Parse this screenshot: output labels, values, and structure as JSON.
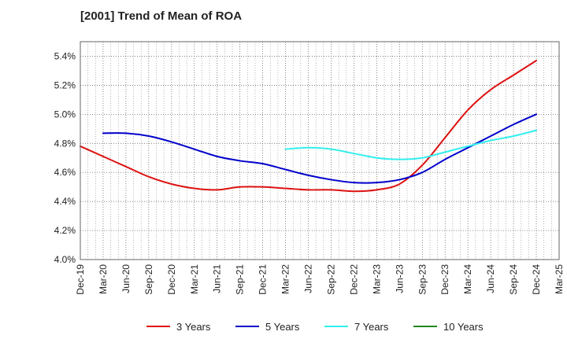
{
  "chart_data": {
    "type": "line",
    "title": "[2001]  Trend of Mean of ROA",
    "xlabel": "",
    "ylabel": "",
    "x": [
      "Dec-19",
      "Mar-20",
      "Jun-20",
      "Sep-20",
      "Dec-20",
      "Mar-21",
      "Jun-21",
      "Sep-21",
      "Dec-21",
      "Mar-22",
      "Jun-22",
      "Sep-22",
      "Dec-22",
      "Mar-23",
      "Jun-23",
      "Sep-23",
      "Dec-23",
      "Mar-24",
      "Jun-24",
      "Sep-24",
      "Dec-24",
      "Mar-25"
    ],
    "ylim": [
      4.0,
      5.5
    ],
    "yticks": [
      4.0,
      4.2,
      4.4,
      4.6,
      4.8,
      5.0,
      5.2,
      5.4
    ],
    "ytick_labels": [
      "4.0%",
      "4.2%",
      "4.4%",
      "4.6%",
      "4.8%",
      "5.0%",
      "5.2%",
      "5.4%"
    ],
    "grid": true,
    "legend_position": "bottom",
    "series": [
      {
        "name": "3 Years",
        "color": "#dd1111",
        "values": [
          4.78,
          4.71,
          4.64,
          4.57,
          4.52,
          4.49,
          4.48,
          4.5,
          4.5,
          4.49,
          4.48,
          4.48,
          4.47,
          4.48,
          4.52,
          4.65,
          4.84,
          5.03,
          5.17,
          5.27,
          5.37,
          null
        ]
      },
      {
        "name": "5 Years",
        "color": "#0000cc",
        "values": [
          null,
          4.87,
          4.87,
          4.85,
          4.81,
          4.76,
          4.71,
          4.68,
          4.66,
          4.62,
          4.58,
          4.55,
          4.53,
          4.53,
          4.55,
          4.6,
          4.69,
          4.77,
          4.85,
          4.93,
          5.0,
          null
        ]
      },
      {
        "name": "7 Years",
        "color": "#33eeee",
        "values": [
          null,
          null,
          null,
          null,
          null,
          null,
          null,
          null,
          null,
          4.76,
          4.77,
          4.76,
          4.73,
          4.7,
          4.69,
          4.7,
          4.74,
          4.78,
          4.82,
          4.85,
          4.89,
          null
        ]
      },
      {
        "name": "10 Years",
        "color": "#228822",
        "values": [
          null,
          null,
          null,
          null,
          null,
          null,
          null,
          null,
          null,
          null,
          null,
          null,
          null,
          null,
          null,
          null,
          null,
          null,
          null,
          null,
          null,
          null
        ]
      }
    ]
  }
}
